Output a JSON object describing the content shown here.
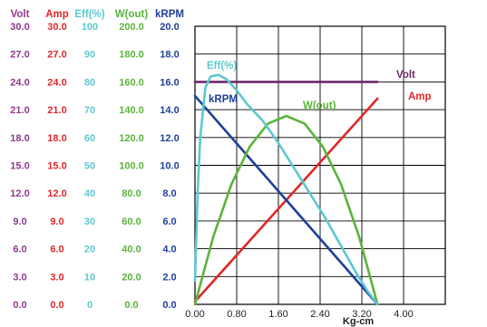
{
  "chart_data": {
    "type": "line",
    "xlabel": "Kg-cm",
    "x_ticks": [
      "0.00",
      "0.80",
      "1.60",
      "2.40",
      "3.20",
      "4.00"
    ],
    "xlim": [
      0,
      4.0
    ],
    "grid": true,
    "axes": [
      {
        "key": "volt",
        "title": "Volt",
        "color": "#8e3a8e",
        "ticks": [
          "0.0",
          "3.0",
          "6.0",
          "9.0",
          "12.0",
          "15.0",
          "18.0",
          "21.0",
          "24.0",
          "27.0",
          "30.0"
        ]
      },
      {
        "key": "amp",
        "title": "Amp",
        "color": "#e02727",
        "ticks": [
          "0.0",
          "3.0",
          "6.0",
          "9.0",
          "12.0",
          "15.0",
          "18.0",
          "21.0",
          "24.0",
          "27.0",
          "30.0"
        ]
      },
      {
        "key": "eff",
        "title": "Eff(%)",
        "color": "#5cc8d0",
        "ticks": [
          "0",
          "10",
          "20",
          "30",
          "40",
          "50",
          "60",
          "70",
          "80",
          "90",
          "100"
        ]
      },
      {
        "key": "wout",
        "title": "W(out)",
        "color": "#5ab43a",
        "ticks": [
          "0.0",
          "20.0",
          "40.0",
          "60.0",
          "80.0",
          "100.0",
          "120.0",
          "140.0",
          "160.0",
          "180.0",
          "200.0"
        ]
      },
      {
        "key": "krpm",
        "title": "kRPM",
        "color": "#1f3f99",
        "ticks": [
          "0.0",
          "2.0",
          "4.0",
          "6.0",
          "8.0",
          "10.0",
          "12.0",
          "14.0",
          "16.0",
          "18.0",
          "20.0"
        ]
      }
    ],
    "series": [
      {
        "name": "Volt",
        "axis": "volt",
        "color": "#6b2a6b",
        "x": [
          0,
          3.5
        ],
        "y": [
          24.0,
          24.0
        ]
      },
      {
        "name": "Amp",
        "axis": "amp",
        "color": "#e02727",
        "x": [
          0,
          3.5
        ],
        "y": [
          0.3,
          22.2
        ]
      },
      {
        "name": "kRPM",
        "axis": "krpm",
        "color": "#1f3f99",
        "x": [
          0,
          3.5
        ],
        "y": [
          15.0,
          0.0
        ]
      },
      {
        "name": "W(out)",
        "axis": "wout",
        "color": "#5ab43a",
        "x": [
          0,
          0.35,
          0.7,
          1.05,
          1.4,
          1.75,
          2.1,
          2.45,
          2.8,
          3.15,
          3.5
        ],
        "y": [
          0,
          48.5,
          86.5,
          113.5,
          130.0,
          135.5,
          130.0,
          113.5,
          86.5,
          48.5,
          0
        ]
      },
      {
        "name": "Eff(%)",
        "axis": "eff",
        "color": "#5cc8d0",
        "x": [
          0,
          0.05,
          0.1,
          0.2,
          0.3,
          0.45,
          0.6,
          0.8,
          1.0,
          1.3,
          1.6,
          1.9,
          2.2,
          2.5,
          2.8,
          3.1,
          3.3,
          3.5
        ],
        "y": [
          8.5,
          40.0,
          60.0,
          78.0,
          82.0,
          82.5,
          81.0,
          77.0,
          72.0,
          66.0,
          58.0,
          49.0,
          40.0,
          31.0,
          21.0,
          11.0,
          5.0,
          0
        ]
      }
    ]
  }
}
